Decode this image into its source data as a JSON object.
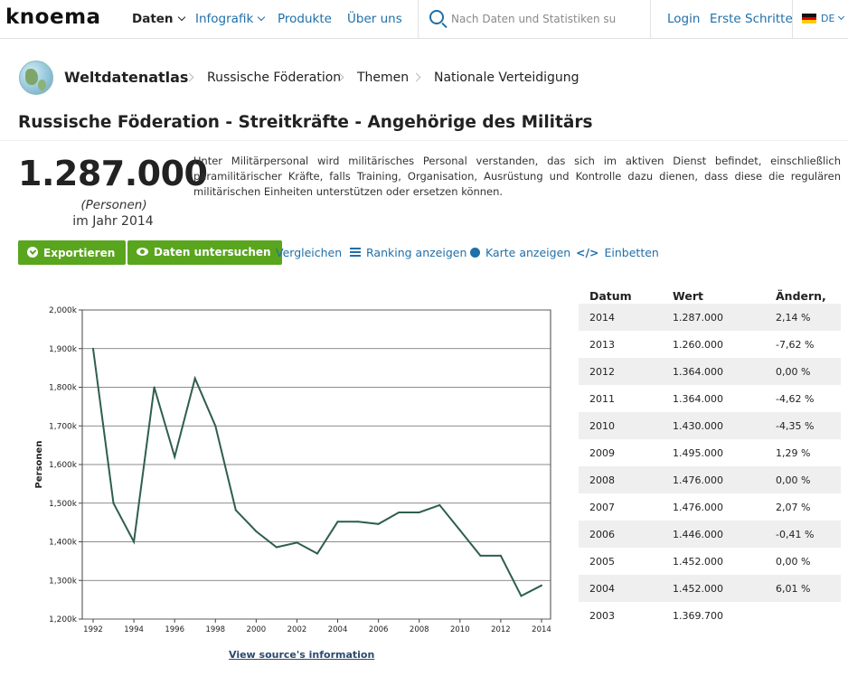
{
  "topnav": {
    "logo": "knoema",
    "items": [
      "Daten",
      "Infografik",
      "Produkte",
      "Über uns"
    ],
    "search_placeholder": "Nach Daten und Statistiken su",
    "login": "Login",
    "first_steps": "Erste Schritte",
    "lang": "DE"
  },
  "breadcrumb": [
    "Weltdatenatlas",
    "Russische Föderation",
    "Themen",
    "Nationale Verteidigung"
  ],
  "title": "Russische Föderation - Streitkräfte - Angehörige des Militärs",
  "value": {
    "number": "1.287.000",
    "unit": "(Personen)",
    "year": "im Jahr 2014"
  },
  "description": "Unter Militärpersonal wird militärisches Personal verstanden, das sich im aktiven Dienst befindet, einschließlich paramilitärischer Kräfte, falls Training, Organisation, Ausrüstung und Kontrolle dazu dienen, dass diese die regulären militärischen Einheiten unterstützen oder ersetzen können.",
  "actions": {
    "export": "Exportieren",
    "explore": "Daten untersuchen",
    "compare": "Vergleichen",
    "ranking": "Ranking anzeigen",
    "map": "Karte anzeigen",
    "embed": "Einbetten"
  },
  "source_link": "View source's information",
  "table": {
    "headers": [
      "Datum",
      "Wert",
      "Ändern, %"
    ],
    "rows": [
      [
        "2014",
        "1.287.000",
        "2,14 %"
      ],
      [
        "2013",
        "1.260.000",
        "-7,62 %"
      ],
      [
        "2012",
        "1.364.000",
        "0,00 %"
      ],
      [
        "2011",
        "1.364.000",
        "-4,62 %"
      ],
      [
        "2010",
        "1.430.000",
        "-4,35 %"
      ],
      [
        "2009",
        "1.495.000",
        "1,29 %"
      ],
      [
        "2008",
        "1.476.000",
        "0,00 %"
      ],
      [
        "2007",
        "1.476.000",
        "2,07 %"
      ],
      [
        "2006",
        "1.446.000",
        "-0,41 %"
      ],
      [
        "2005",
        "1.452.000",
        "0,00 %"
      ],
      [
        "2004",
        "1.452.000",
        "6,01 %"
      ],
      [
        "2003",
        "1.369.700",
        ""
      ]
    ]
  },
  "colors": {
    "accent_green": "#5aa51e",
    "link_blue": "#1f6fa8",
    "line": "#2e5e4e"
  },
  "chart_data": {
    "type": "line",
    "title": "",
    "xlabel": "",
    "ylabel": "Personen",
    "x": [
      1992,
      1993,
      1994,
      1995,
      1996,
      1997,
      1998,
      1999,
      2000,
      2001,
      2002,
      2003,
      2004,
      2005,
      2006,
      2007,
      2008,
      2009,
      2010,
      2011,
      2012,
      2013,
      2014
    ],
    "series": [
      {
        "values": [
          1900000,
          1500000,
          1400000,
          1800000,
          1620000,
          1823000,
          1700000,
          1482000,
          1427000,
          1386000,
          1398000,
          1369700,
          1452000,
          1452000,
          1446000,
          1476000,
          1476000,
          1495000,
          1430000,
          1364000,
          1364000,
          1260000,
          1287000
        ]
      }
    ],
    "ylim": [
      1200000,
      2000000
    ],
    "yticks": [
      "1,200k",
      "1,300k",
      "1,400k",
      "1,500k",
      "1,600k",
      "1,700k",
      "1,800k",
      "1,900k",
      "2,000k"
    ],
    "xticks": [
      "1992",
      "1994",
      "1996",
      "1998",
      "2000",
      "2002",
      "2004",
      "2006",
      "2008",
      "2010",
      "2012",
      "2014"
    ],
    "grid": true
  }
}
